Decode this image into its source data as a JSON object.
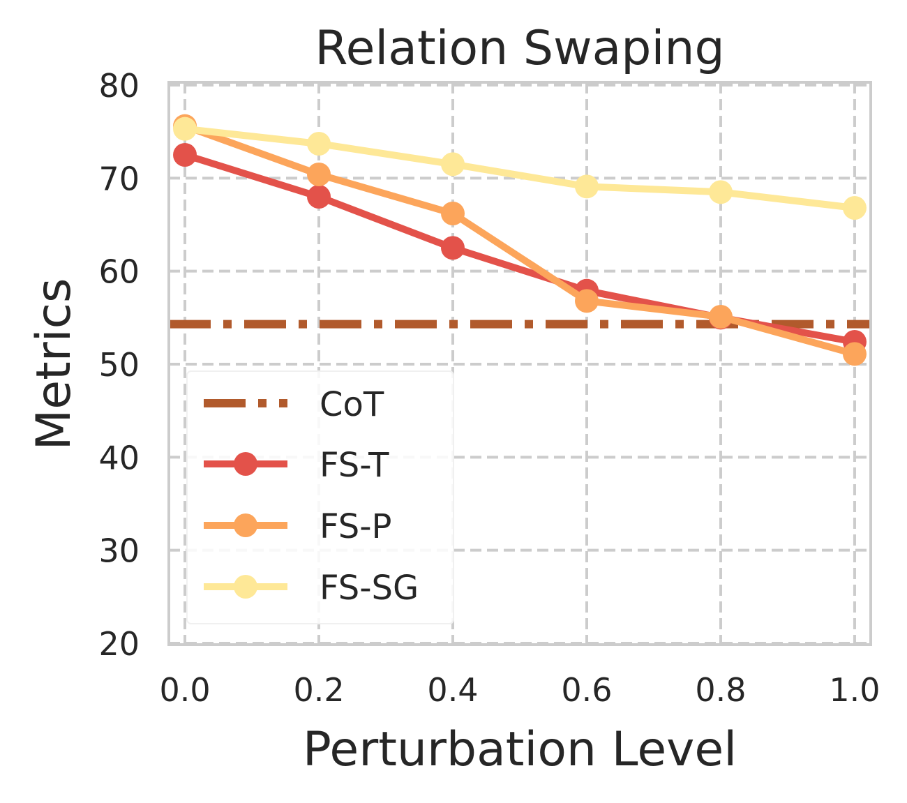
{
  "chart_data": {
    "type": "line",
    "title": "Relation Swaping",
    "xlabel": "Perturbation Level",
    "ylabel": "Metrics",
    "x": [
      0.0,
      0.2,
      0.4,
      0.6,
      0.8,
      1.0
    ],
    "x_tick_labels": [
      "0.0",
      "0.2",
      "0.4",
      "0.6",
      "0.8",
      "1.0"
    ],
    "y_ticks": [
      20,
      30,
      40,
      50,
      60,
      70,
      80
    ],
    "y_tick_labels": [
      "20",
      "30",
      "40",
      "50",
      "60",
      "70",
      "80"
    ],
    "xlim": [
      -0.024,
      1.024
    ],
    "ylim": [
      20,
      80
    ],
    "grid": true,
    "legend_position": "lower-left",
    "hlines": [
      {
        "name": "CoT",
        "value": 54.3,
        "color": "#b15a2c",
        "style": "dashdot"
      }
    ],
    "series": [
      {
        "name": "FS-T",
        "color": "#e3524a",
        "values": [
          72.5,
          68.0,
          62.5,
          57.9,
          55.0,
          52.4
        ]
      },
      {
        "name": "FS-P",
        "color": "#fca55b",
        "values": [
          75.6,
          70.4,
          66.2,
          56.8,
          55.1,
          51.1
        ]
      },
      {
        "name": "FS-SG",
        "color": "#fee897",
        "values": [
          75.3,
          73.7,
          71.5,
          69.1,
          68.5,
          66.8
        ]
      }
    ]
  }
}
